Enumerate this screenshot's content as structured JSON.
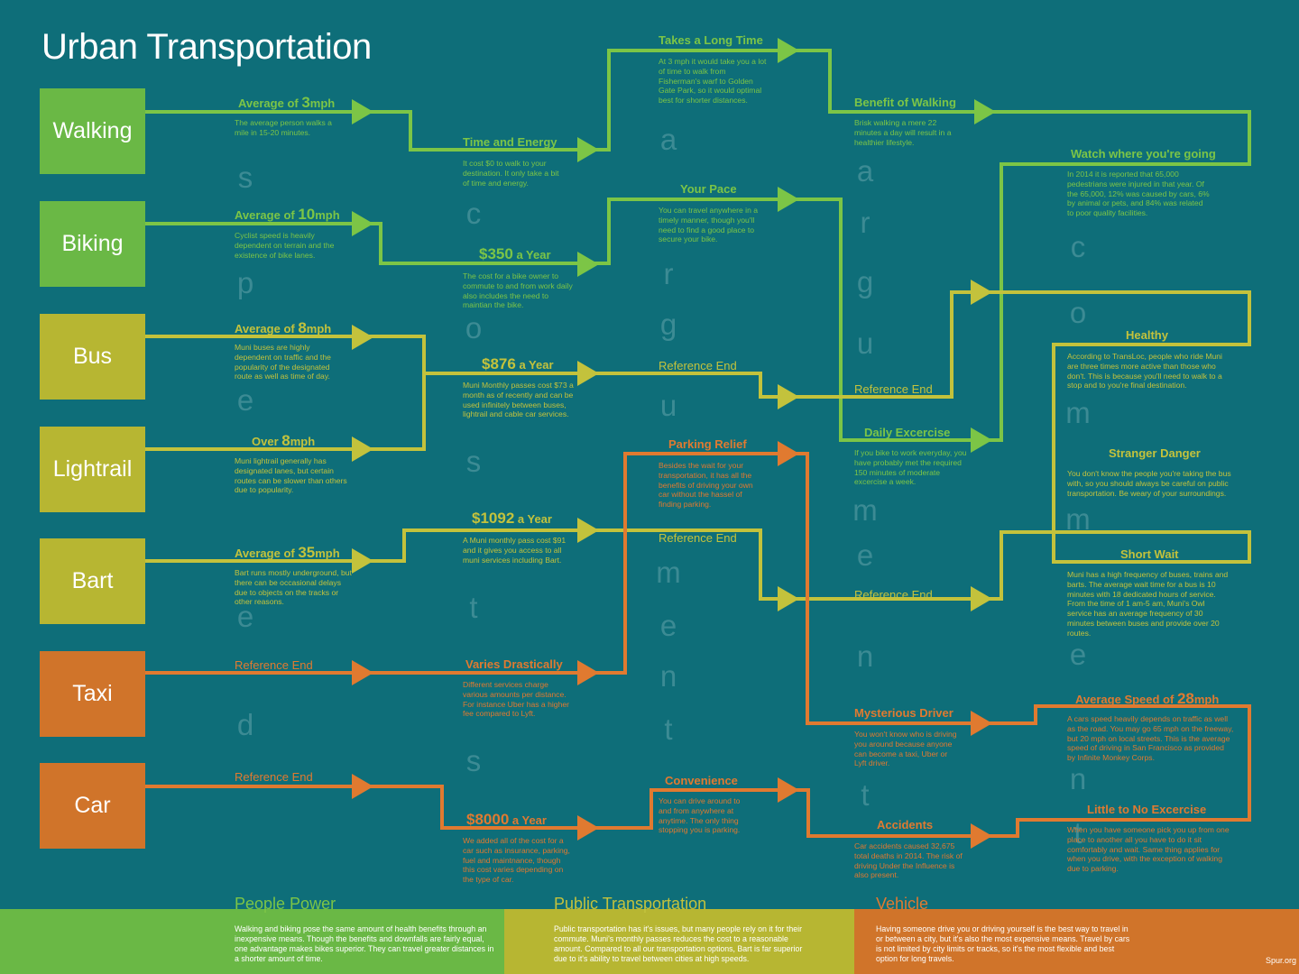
{
  "title": "Urban Transportation",
  "colors": {
    "background": "#0e6e79",
    "green": "#6ab845",
    "yellow": "#b7b632",
    "orange": "#d0742a"
  },
  "modes": [
    "Walking",
    "Biking",
    "Bus",
    "Lightrail",
    "Bart",
    "Taxi",
    "Car"
  ],
  "speed": {
    "walking": {
      "pre": "Average of ",
      "num": "3",
      "post": "mph",
      "desc": "The average person walks a mile in 15-20 minutes."
    },
    "biking": {
      "pre": "Average of ",
      "num": "10",
      "post": "mph",
      "desc": "Cyclist speed is heavily dependent on terrain and the existence of bike lanes."
    },
    "bus": {
      "pre": "Average of ",
      "num": "8",
      "post": "mph",
      "desc": "Muni buses are highly dependent on traffic and the popularity of the designated route as well as time of day."
    },
    "lightrail": {
      "pre": "Over ",
      "num": "8",
      "post": "mph",
      "desc": "Muni lightrail generally has designated lanes, but certain routes can be slower than others due to popularity."
    },
    "bart": {
      "pre": "Average of ",
      "num": "35",
      "post": "mph",
      "desc": "Bart runs mostly underground, but there can be occasional delays due to objects on the tracks or other reasons."
    },
    "taxi": {
      "ref": "Reference End"
    },
    "car": {
      "ref": "Reference End"
    }
  },
  "cost": {
    "walking": {
      "head": "Time and Energy",
      "desc": "It cost $0 to walk to your destination. It only take a bit of time and energy."
    },
    "biking": {
      "num": "$350",
      "post": " a Year",
      "desc": "The cost for a bike owner to commute to and from work daily also includes the need to maintian the bike."
    },
    "bus": {
      "num": "$876",
      "post": " a Year",
      "desc": "Muni Monthly passes cost $73 a month as of recently and can be used infinitely between buses, lightrail and cable car services."
    },
    "bart": {
      "num": "$1092",
      "post": " a Year",
      "desc": "A Muni monthly pass cost $91 and it gives you access to all muni services including Bart."
    },
    "taxi": {
      "head": "Varies Drastically",
      "desc": "Different services charge various amounts per distance. For instance Uber has a higher fee compared to Lyft."
    },
    "car": {
      "num": "$8000",
      "post": " a Year",
      "desc": "We added all of the cost for a car such as insurance, parking, fuel and maintnance, though this cost varies depending on the type of car."
    }
  },
  "argument": {
    "walking": {
      "head": "Takes a Long Time",
      "desc": "At 3 mph it would take you a lot of time to walk from Fisherman's warf to Golden Gate Park, so it would optimal best for shorter distances."
    },
    "biking": {
      "head": "Your Pace",
      "desc": "You can travel anywhere in a timely manner, though you'll need to find a good place to secure your bike."
    },
    "bus_ref": "Reference End",
    "taxi": {
      "head": "Parking Relief",
      "desc": "Besides the wait for your transportation, it has all the benefits of driving your own car without the hassel of finding parking."
    },
    "bart_ref": "Reference End",
    "car": {
      "head": "Convenience",
      "desc": "You can drive around to and from anywhere at anytime. The only thing stopping you is parking."
    }
  },
  "argument2": {
    "walking": {
      "head": "Benefit of Walking",
      "desc": "Brisk walking a mere 22 minutes a day will result in a healthier lifestyle."
    },
    "bus_ref": "Reference End",
    "biking": {
      "head": "Daily Excercise",
      "desc": "If you bike to work everyday, you have probably met the required 150 minutes of moderate excercise a week."
    },
    "bart_ref": "Reference End",
    "taxi": {
      "head": "Mysterious Driver",
      "desc": "You won't know who is driving you around because anyone can become a taxi, Uber or Lyft driver."
    },
    "car": {
      "head": "Accidents",
      "desc": "Car accidents caused 32,675 total deaths in 2014. The risk of driving Under the Influence is also present."
    }
  },
  "comment": {
    "watch": {
      "head": "Watch where you're going",
      "desc": "In 2014 it is reported that 65,000 pedestrians were injured in that year. Of the 65,000, 12% was caused by cars, 6% by animal or pets, and 84% was related to poor quality facilities."
    },
    "healthy": {
      "head": "Healthy",
      "desc": "According to TransLoc, people who ride Muni are three times more active than those who don't. This is because you'll need to walk to a stop and to you're final destination."
    },
    "stranger": {
      "head": "Stranger Danger",
      "desc": "You don't know the people you're taking the bus with, so you should always be careful on public transportation. Be weary of your surroundings."
    },
    "shortwait": {
      "head": "Short Wait",
      "desc": "Muni has a high frequency of buses, trains and barts. The average wait time for a bus is 10 minutes with 18 dedicated hours of service. From the time of 1 am-5 am, Muni's Owl service has an average frequency of 30 minutes between buses and provide over 20 routes."
    },
    "carspeed": {
      "pre": "Average Speed of ",
      "num": "28",
      "post": "mph",
      "desc": "A cars speed heavily depends on traffic as well as the road. You may go 65 mph on the freeway, but 20 mph on local streets. This is the average speed of driving in San Francisco as provided by Infinite Monkey Corps."
    },
    "little": {
      "head": "Little to No Excercise",
      "desc": "When you have someone pick you up from one place to another all you have to do it sit comfortably and wait. Same thing applies for when you drive, with the exception of walking due to parking."
    }
  },
  "vertical_words": {
    "speed": "speed",
    "costs": "costs",
    "argument": "argument",
    "argument2": "argument",
    "comment": "comment"
  },
  "footer": {
    "people": {
      "head": "People Power",
      "desc": "Walking and biking pose the same amount of health benefits through an inexpensive means. Though the benefits and downfalls are fairly equal, one advantage makes bikes superior. They can travel greater distances in a shorter amount of time."
    },
    "public": {
      "head": "Public Transportation",
      "desc": "Public transportation has it's issues, but many people rely on it for their commute. Muni's monthly passes reduces the cost to a reasonable amount. Compared to all our transportation options, Bart is far superior due to it's ability to travel between cities at high speeds."
    },
    "vehicle": {
      "head": "Vehicle",
      "desc": "Having someone drive you or driving yourself is the best way to travel in or between a city, but it's also the most expensive means. Travel by cars is not limited by city limits or tracks, so it's the most flexible and best option for long travels."
    },
    "credit": "Spur.org"
  }
}
